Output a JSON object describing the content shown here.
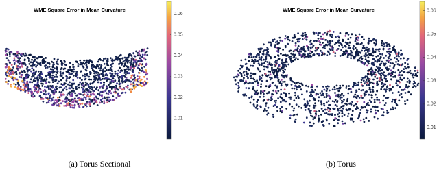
{
  "chart_data": [
    {
      "type": "scatter3d",
      "title": "WME Square Error in Mean Curvature",
      "caption": "(a) Torus Sectional",
      "colorbar": {
        "clim": [
          0,
          0.066
        ],
        "ticks": [
          0.01,
          0.02,
          0.03,
          0.04,
          0.05,
          0.06
        ]
      }
    },
    {
      "type": "scatter3d",
      "title": "WME Square Error in Mean Curvature",
      "caption": "(b) Torus",
      "colorbar": {
        "clim": [
          0.005,
          0.064
        ],
        "ticks": [
          0.01,
          0.02,
          0.03,
          0.04,
          0.05,
          0.06
        ]
      }
    }
  ]
}
